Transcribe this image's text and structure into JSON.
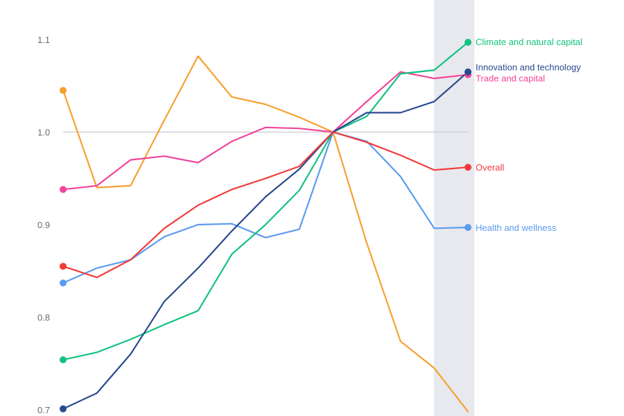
{
  "chart_data": {
    "type": "line",
    "title": "",
    "xlabel": "",
    "ylabel": "",
    "ylim": [
      0.7,
      1.1
    ],
    "y_ticks": [
      "0.7",
      "0.8",
      "0.9",
      "1.0",
      "1.1"
    ],
    "reference_line": 1.0,
    "grid": false,
    "legend": "direct labels at right end of lines",
    "highlight_band": {
      "x_start": 11.0,
      "x_end": 12.2,
      "color": "#e8e9ee"
    },
    "x": [
      0,
      1,
      2,
      3,
      4,
      5,
      6,
      7,
      8,
      9,
      10,
      11,
      12
    ],
    "series": [
      {
        "name": "",
        "color": "#f7a030",
        "values": [
          1.045,
          0.94,
          0.942,
          1.013,
          1.082,
          1.038,
          1.03,
          1.016,
          1.0,
          0.88,
          0.774,
          0.745,
          0.698
        ],
        "labelled": false
      },
      {
        "name": "Health and wellness",
        "color": "#5b9bf0",
        "values": [
          0.837,
          0.853,
          0.862,
          0.887,
          0.9,
          0.901,
          0.886,
          0.895,
          1.0,
          0.99,
          0.952,
          0.896,
          0.897
        ],
        "labelled": true
      },
      {
        "name": "Trade and capital",
        "color": "#f2449a",
        "values": [
          0.938,
          0.942,
          0.97,
          0.974,
          0.967,
          0.99,
          1.005,
          1.004,
          1.0,
          1.033,
          1.065,
          1.058,
          1.062
        ],
        "labelled": true
      },
      {
        "name": "Climate and natural capital",
        "color": "#14c27f",
        "values": [
          0.754,
          0.762,
          0.776,
          0.792,
          0.807,
          0.868,
          0.9,
          0.937,
          1.0,
          1.017,
          1.063,
          1.067,
          1.097
        ],
        "labelled": true
      },
      {
        "name": "Innovation and technology",
        "color": "#2a4a8d",
        "values": [
          0.701,
          0.718,
          0.76,
          0.817,
          0.853,
          0.893,
          0.93,
          0.96,
          1.0,
          1.021,
          1.021,
          1.033,
          1.065
        ],
        "labelled": true
      },
      {
        "name": "Overall",
        "color": "#f23b3b",
        "values": [
          0.855,
          0.843,
          0.862,
          0.896,
          0.921,
          0.938,
          0.95,
          0.963,
          1.0,
          0.989,
          0.975,
          0.959,
          0.962
        ],
        "labelled": true
      }
    ]
  }
}
